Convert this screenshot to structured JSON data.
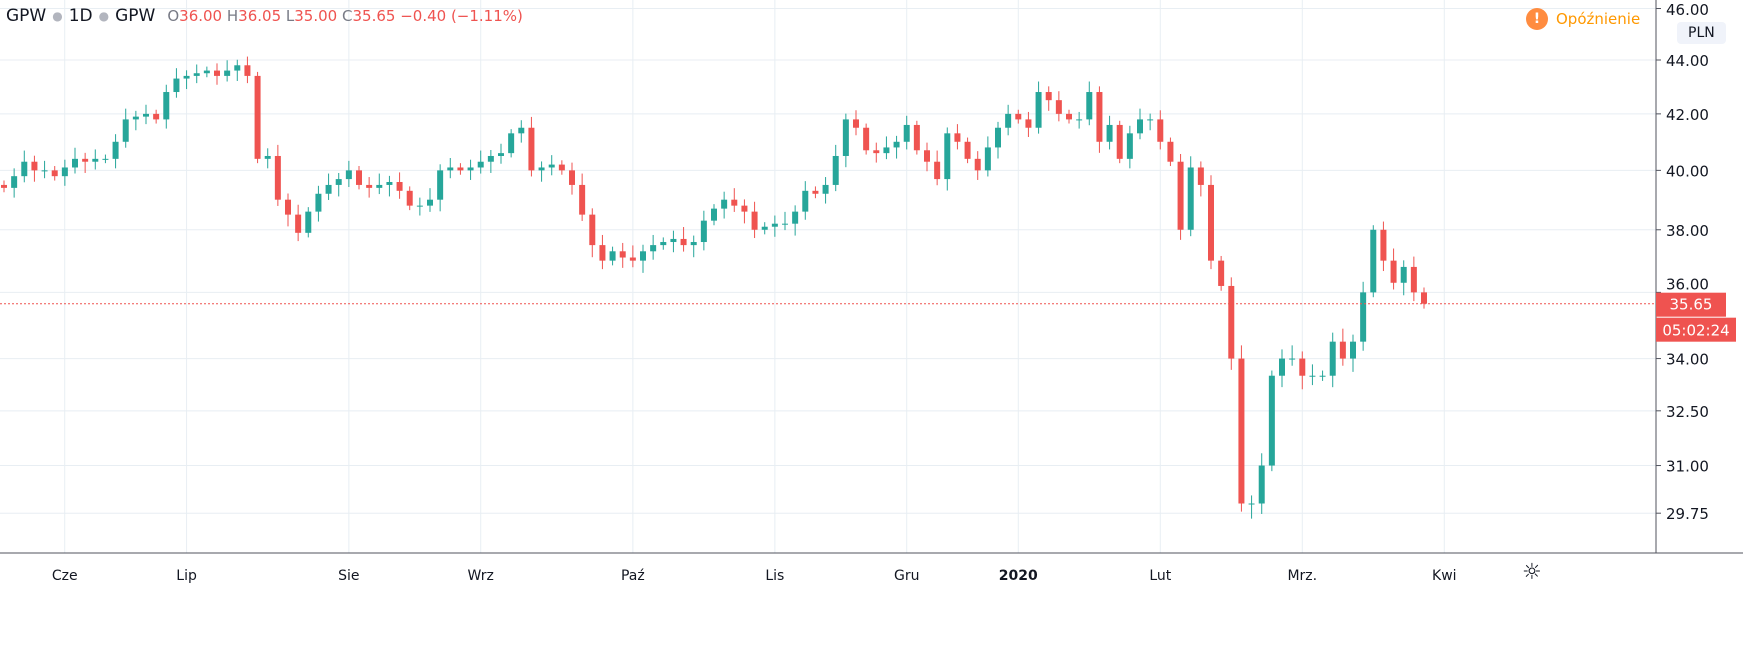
{
  "legend": {
    "symbol": "GPW",
    "interval": "1D",
    "exchange": "GPW",
    "open_label": "O",
    "open": "36.00",
    "high_label": "H",
    "high": "36.05",
    "low_label": "L",
    "low": "35.00",
    "close_label": "C",
    "close": "35.65",
    "change": "−0.40 (−1.11%)"
  },
  "status": {
    "delay_icon": "!",
    "delay_label": "Opóźnienie"
  },
  "currency": "PLN",
  "current_price_label": "35.65",
  "countdown_label": "05:02:24",
  "colors": {
    "up": "#26a69a",
    "down": "#ef5350",
    "grid": "#e8eef3"
  },
  "chart_data": {
    "type": "candlestick",
    "scale": "log",
    "ylim": [
      29.0,
      46.3
    ],
    "y_ticks": [
      "46.00",
      "44.00",
      "42.00",
      "40.00",
      "38.00",
      "36.00",
      "34.00",
      "32.50",
      "31.00",
      "29.75"
    ],
    "y_tick_values": [
      46,
      44,
      42,
      40,
      38,
      36,
      34,
      32.5,
      31,
      29.75
    ],
    "x_ticks": [
      "Cze",
      "Lip",
      "Sie",
      "Wrz",
      "Paź",
      "Lis",
      "Gru",
      "2020",
      "Lut",
      "Mrz.",
      "Kwi"
    ],
    "x_tick_index": [
      5,
      18,
      34,
      47,
      62,
      76,
      89,
      100,
      114,
      128,
      142
    ],
    "last_price": 35.65,
    "close": [
      39.4,
      39.8,
      40.3,
      40.0,
      40.0,
      39.8,
      40.1,
      40.4,
      40.3,
      40.4,
      40.4,
      41.0,
      41.8,
      41.9,
      42.0,
      41.8,
      42.8,
      43.3,
      43.4,
      43.5,
      43.6,
      43.4,
      43.6,
      43.8,
      43.4,
      40.4,
      40.5,
      39.0,
      38.5,
      37.9,
      38.6,
      39.2,
      39.5,
      39.7,
      40.0,
      39.5,
      39.4,
      39.5,
      39.6,
      39.3,
      38.8,
      38.8,
      39.0,
      40.0,
      40.1,
      40.0,
      40.1,
      40.3,
      40.5,
      40.6,
      41.3,
      41.5,
      40.0,
      40.1,
      40.2,
      40.0,
      39.5,
      38.5,
      37.5,
      37.0,
      37.3,
      37.1,
      37.0,
      37.3,
      37.5,
      37.6,
      37.7,
      37.5,
      37.6,
      38.3,
      38.7,
      39.0,
      38.8,
      38.6,
      38.0,
      38.1,
      38.2,
      38.2,
      38.6,
      39.3,
      39.2,
      39.5,
      40.5,
      41.8,
      41.5,
      40.7,
      40.6,
      40.8,
      41.0,
      41.6,
      40.7,
      40.3,
      39.7,
      41.3,
      41.0,
      40.4,
      40.0,
      40.8,
      41.5,
      42.0,
      41.8,
      41.5,
      42.8,
      42.5,
      42.0,
      41.8,
      41.8,
      42.8,
      41.0,
      41.6,
      40.4,
      41.3,
      41.8,
      41.8,
      41.0,
      40.3,
      38.0,
      40.1,
      39.5,
      37.0,
      36.2,
      34.0,
      30.0,
      30.0,
      31.0,
      33.5,
      34.0,
      34.0,
      33.5,
      33.5,
      33.5,
      34.5,
      34.0,
      34.5,
      36.0,
      38.0,
      37.0,
      36.3,
      36.8,
      36.0,
      35.65
    ]
  }
}
